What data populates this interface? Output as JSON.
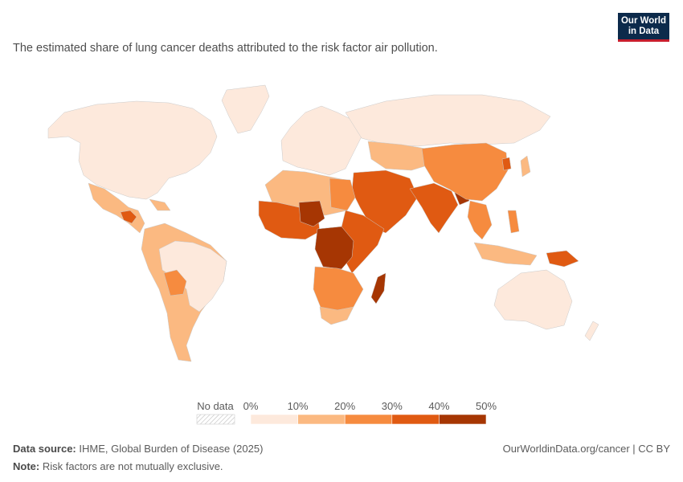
{
  "header": {
    "subtitle": "The estimated share of lung cancer deaths attributed to the risk factor air pollution.",
    "logo_line1": "Our World",
    "logo_line2": "in Data"
  },
  "legend": {
    "no_data_label": "No data",
    "ticks": [
      "0%",
      "10%",
      "20%",
      "30%",
      "40%",
      "50%"
    ],
    "bins": [
      {
        "range": "0-10%",
        "color": "#fde9dc"
      },
      {
        "range": "10-20%",
        "color": "#fbb981"
      },
      {
        "range": "20-30%",
        "color": "#f68b3f"
      },
      {
        "range": "30-40%",
        "color": "#e05a12"
      },
      {
        "range": "40-50%",
        "color": "#a63603"
      }
    ]
  },
  "footer": {
    "source_label": "Data source:",
    "source_text": "IHME, Global Burden of Disease (2025)",
    "url_text": "OurWorldinData.org/cancer | CC BY",
    "note_label": "Note:",
    "note_text": "Risk factors are not mutually exclusive."
  },
  "chart_data": {
    "type": "choropleth",
    "unit": "%",
    "regions": [
      {
        "name": "North America",
        "bin": "0-10%"
      },
      {
        "name": "Central America",
        "bin": "10-20%"
      },
      {
        "name": "South America",
        "bin": "10-20%"
      },
      {
        "name": "Bolivia",
        "bin": "20-30%"
      },
      {
        "name": "Brazil",
        "bin": "0-10%"
      },
      {
        "name": "Europe",
        "bin": "0-10%"
      },
      {
        "name": "Russia",
        "bin": "0-10%"
      },
      {
        "name": "North Africa",
        "bin": "10-20%"
      },
      {
        "name": "Egypt",
        "bin": "20-30%"
      },
      {
        "name": "West Africa",
        "bin": "30-40%"
      },
      {
        "name": "Niger",
        "bin": "40-50%"
      },
      {
        "name": "Central Africa",
        "bin": "40-50%"
      },
      {
        "name": "East Africa",
        "bin": "30-40%"
      },
      {
        "name": "Southern Africa",
        "bin": "20-30%"
      },
      {
        "name": "South Africa",
        "bin": "10-20%"
      },
      {
        "name": "Madagascar",
        "bin": "40-50%"
      },
      {
        "name": "Middle East",
        "bin": "30-40%"
      },
      {
        "name": "Central Asia",
        "bin": "10-20%"
      },
      {
        "name": "India",
        "bin": "30-40%"
      },
      {
        "name": "Bangladesh",
        "bin": "40-50%"
      },
      {
        "name": "China",
        "bin": "20-30%"
      },
      {
        "name": "North Korea",
        "bin": "30-40%"
      },
      {
        "name": "Southeast Asia",
        "bin": "20-30%"
      },
      {
        "name": "Indonesia",
        "bin": "10-20%"
      },
      {
        "name": "Papua New Guinea",
        "bin": "30-40%"
      },
      {
        "name": "Australia",
        "bin": "0-10%"
      }
    ]
  }
}
